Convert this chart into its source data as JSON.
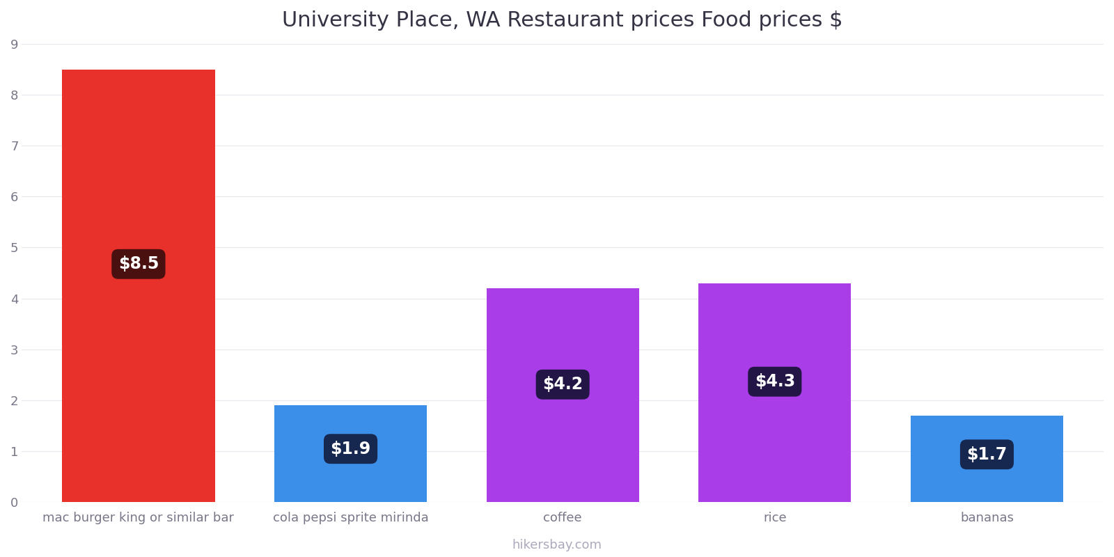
{
  "title": "University Place, WA Restaurant prices Food prices $",
  "categories": [
    "mac burger king or similar bar",
    "cola pepsi sprite mirinda",
    "coffee",
    "rice",
    "bananas"
  ],
  "values": [
    8.5,
    1.9,
    4.2,
    4.3,
    1.7
  ],
  "bar_colors": [
    "#e8312a",
    "#3b8fe8",
    "#a93de8",
    "#a93de8",
    "#3b8fe8"
  ],
  "label_texts": [
    "$8.5",
    "$1.9",
    "$4.2",
    "$4.3",
    "$1.7"
  ],
  "label_bg_colors": [
    "#4a1010",
    "#172850",
    "#231545",
    "#231545",
    "#172850"
  ],
  "ylim": [
    0,
    9
  ],
  "yticks": [
    0,
    1,
    2,
    3,
    4,
    5,
    6,
    7,
    8,
    9
  ],
  "background_color": "#ffffff",
  "grid_color": "#e8e8ee",
  "title_fontsize": 22,
  "tick_fontsize": 13,
  "label_fontsize": 17,
  "footer_text": "hikersbay.com",
  "footer_color": "#aaaabc",
  "footer_fontsize": 13,
  "bar_width": 0.72
}
